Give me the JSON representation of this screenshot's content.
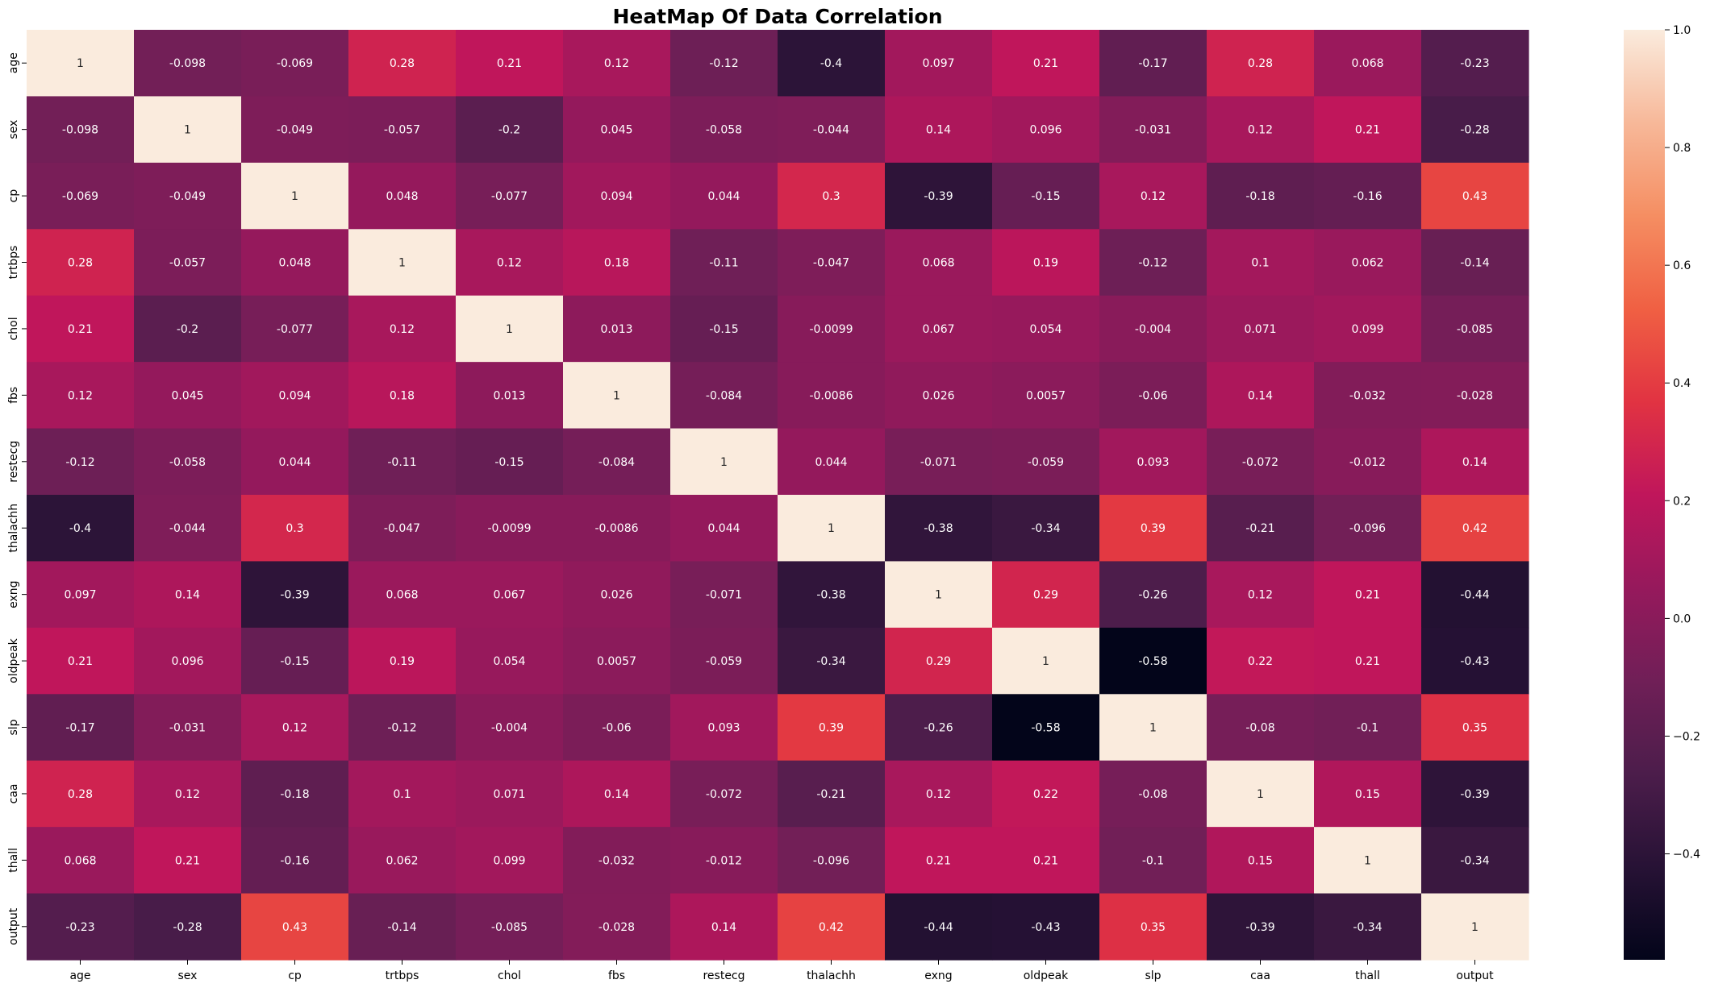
{
  "chart_data": {
    "type": "heatmap",
    "title": "HeatMap Of Data Correlation",
    "xlabel": "",
    "ylabel": "",
    "labels": [
      "age",
      "sex",
      "cp",
      "trtbps",
      "chol",
      "fbs",
      "restecg",
      "thalachh",
      "exng",
      "oldpeak",
      "slp",
      "caa",
      "thall",
      "output"
    ],
    "matrix": [
      [
        "1",
        "-0.098",
        "-0.069",
        "0.28",
        "0.21",
        "0.12",
        "-0.12",
        "-0.4",
        "0.097",
        "0.21",
        "-0.17",
        "0.28",
        "0.068",
        "-0.23"
      ],
      [
        "-0.098",
        "1",
        "-0.049",
        "-0.057",
        "-0.2",
        "0.045",
        "-0.058",
        "-0.044",
        "0.14",
        "0.096",
        "-0.031",
        "0.12",
        "0.21",
        "-0.28"
      ],
      [
        "-0.069",
        "-0.049",
        "1",
        "0.048",
        "-0.077",
        "0.094",
        "0.044",
        "0.3",
        "-0.39",
        "-0.15",
        "0.12",
        "-0.18",
        "-0.16",
        "0.43"
      ],
      [
        "0.28",
        "-0.057",
        "0.048",
        "1",
        "0.12",
        "0.18",
        "-0.11",
        "-0.047",
        "0.068",
        "0.19",
        "-0.12",
        "0.1",
        "0.062",
        "-0.14"
      ],
      [
        "0.21",
        "-0.2",
        "-0.077",
        "0.12",
        "1",
        "0.013",
        "-0.15",
        "-0.0099",
        "0.067",
        "0.054",
        "-0.004",
        "0.071",
        "0.099",
        "-0.085"
      ],
      [
        "0.12",
        "0.045",
        "0.094",
        "0.18",
        "0.013",
        "1",
        "-0.084",
        "-0.0086",
        "0.026",
        "0.0057",
        "-0.06",
        "0.14",
        "-0.032",
        "-0.028"
      ],
      [
        "-0.12",
        "-0.058",
        "0.044",
        "-0.11",
        "-0.15",
        "-0.084",
        "1",
        "0.044",
        "-0.071",
        "-0.059",
        "0.093",
        "-0.072",
        "-0.012",
        "0.14"
      ],
      [
        "-0.4",
        "-0.044",
        "0.3",
        "-0.047",
        "-0.0099",
        "-0.0086",
        "0.044",
        "1",
        "-0.38",
        "-0.34",
        "0.39",
        "-0.21",
        "-0.096",
        "0.42"
      ],
      [
        "0.097",
        "0.14",
        "-0.39",
        "0.068",
        "0.067",
        "0.026",
        "-0.071",
        "-0.38",
        "1",
        "0.29",
        "-0.26",
        "0.12",
        "0.21",
        "-0.44"
      ],
      [
        "0.21",
        "0.096",
        "-0.15",
        "0.19",
        "0.054",
        "0.0057",
        "-0.059",
        "-0.34",
        "0.29",
        "1",
        "-0.58",
        "0.22",
        "0.21",
        "-0.43"
      ],
      [
        "-0.17",
        "-0.031",
        "0.12",
        "-0.12",
        "-0.004",
        "-0.06",
        "0.093",
        "0.39",
        "-0.26",
        "-0.58",
        "1",
        "-0.08",
        "-0.1",
        "0.35"
      ],
      [
        "0.28",
        "0.12",
        "-0.18",
        "0.1",
        "0.071",
        "0.14",
        "-0.072",
        "-0.21",
        "0.12",
        "0.22",
        "-0.08",
        "1",
        "0.15",
        "-0.39"
      ],
      [
        "0.068",
        "0.21",
        "-0.16",
        "0.062",
        "0.099",
        "-0.032",
        "-0.012",
        "-0.096",
        "0.21",
        "0.21",
        "-0.1",
        "0.15",
        "1",
        "-0.34"
      ],
      [
        "-0.23",
        "-0.28",
        "0.43",
        "-0.14",
        "-0.085",
        "-0.028",
        "0.14",
        "0.42",
        "-0.44",
        "-0.43",
        "0.35",
        "-0.39",
        "-0.34",
        "1"
      ]
    ],
    "vmin": -0.58,
    "vmax": 1,
    "colormap": "rocket",
    "colormap_stops": [
      [
        0.0,
        "#03051a"
      ],
      [
        0.1,
        "#271235"
      ],
      [
        0.2,
        "#4c1d4b"
      ],
      [
        0.3,
        "#701f57"
      ],
      [
        0.4,
        "#96195c"
      ],
      [
        0.5,
        "#c0165b"
      ],
      [
        0.6,
        "#e13342"
      ],
      [
        0.7,
        "#f06043"
      ],
      [
        0.8,
        "#f58e62"
      ],
      [
        0.9,
        "#f7b899"
      ],
      [
        1.0,
        "#faebdd"
      ]
    ],
    "colorbar_ticks": [
      "-0.4",
      "-0.2",
      "0.0",
      "0.2",
      "0.4",
      "0.6",
      "0.8",
      "1.0"
    ],
    "grid": false,
    "annotations": true
  }
}
